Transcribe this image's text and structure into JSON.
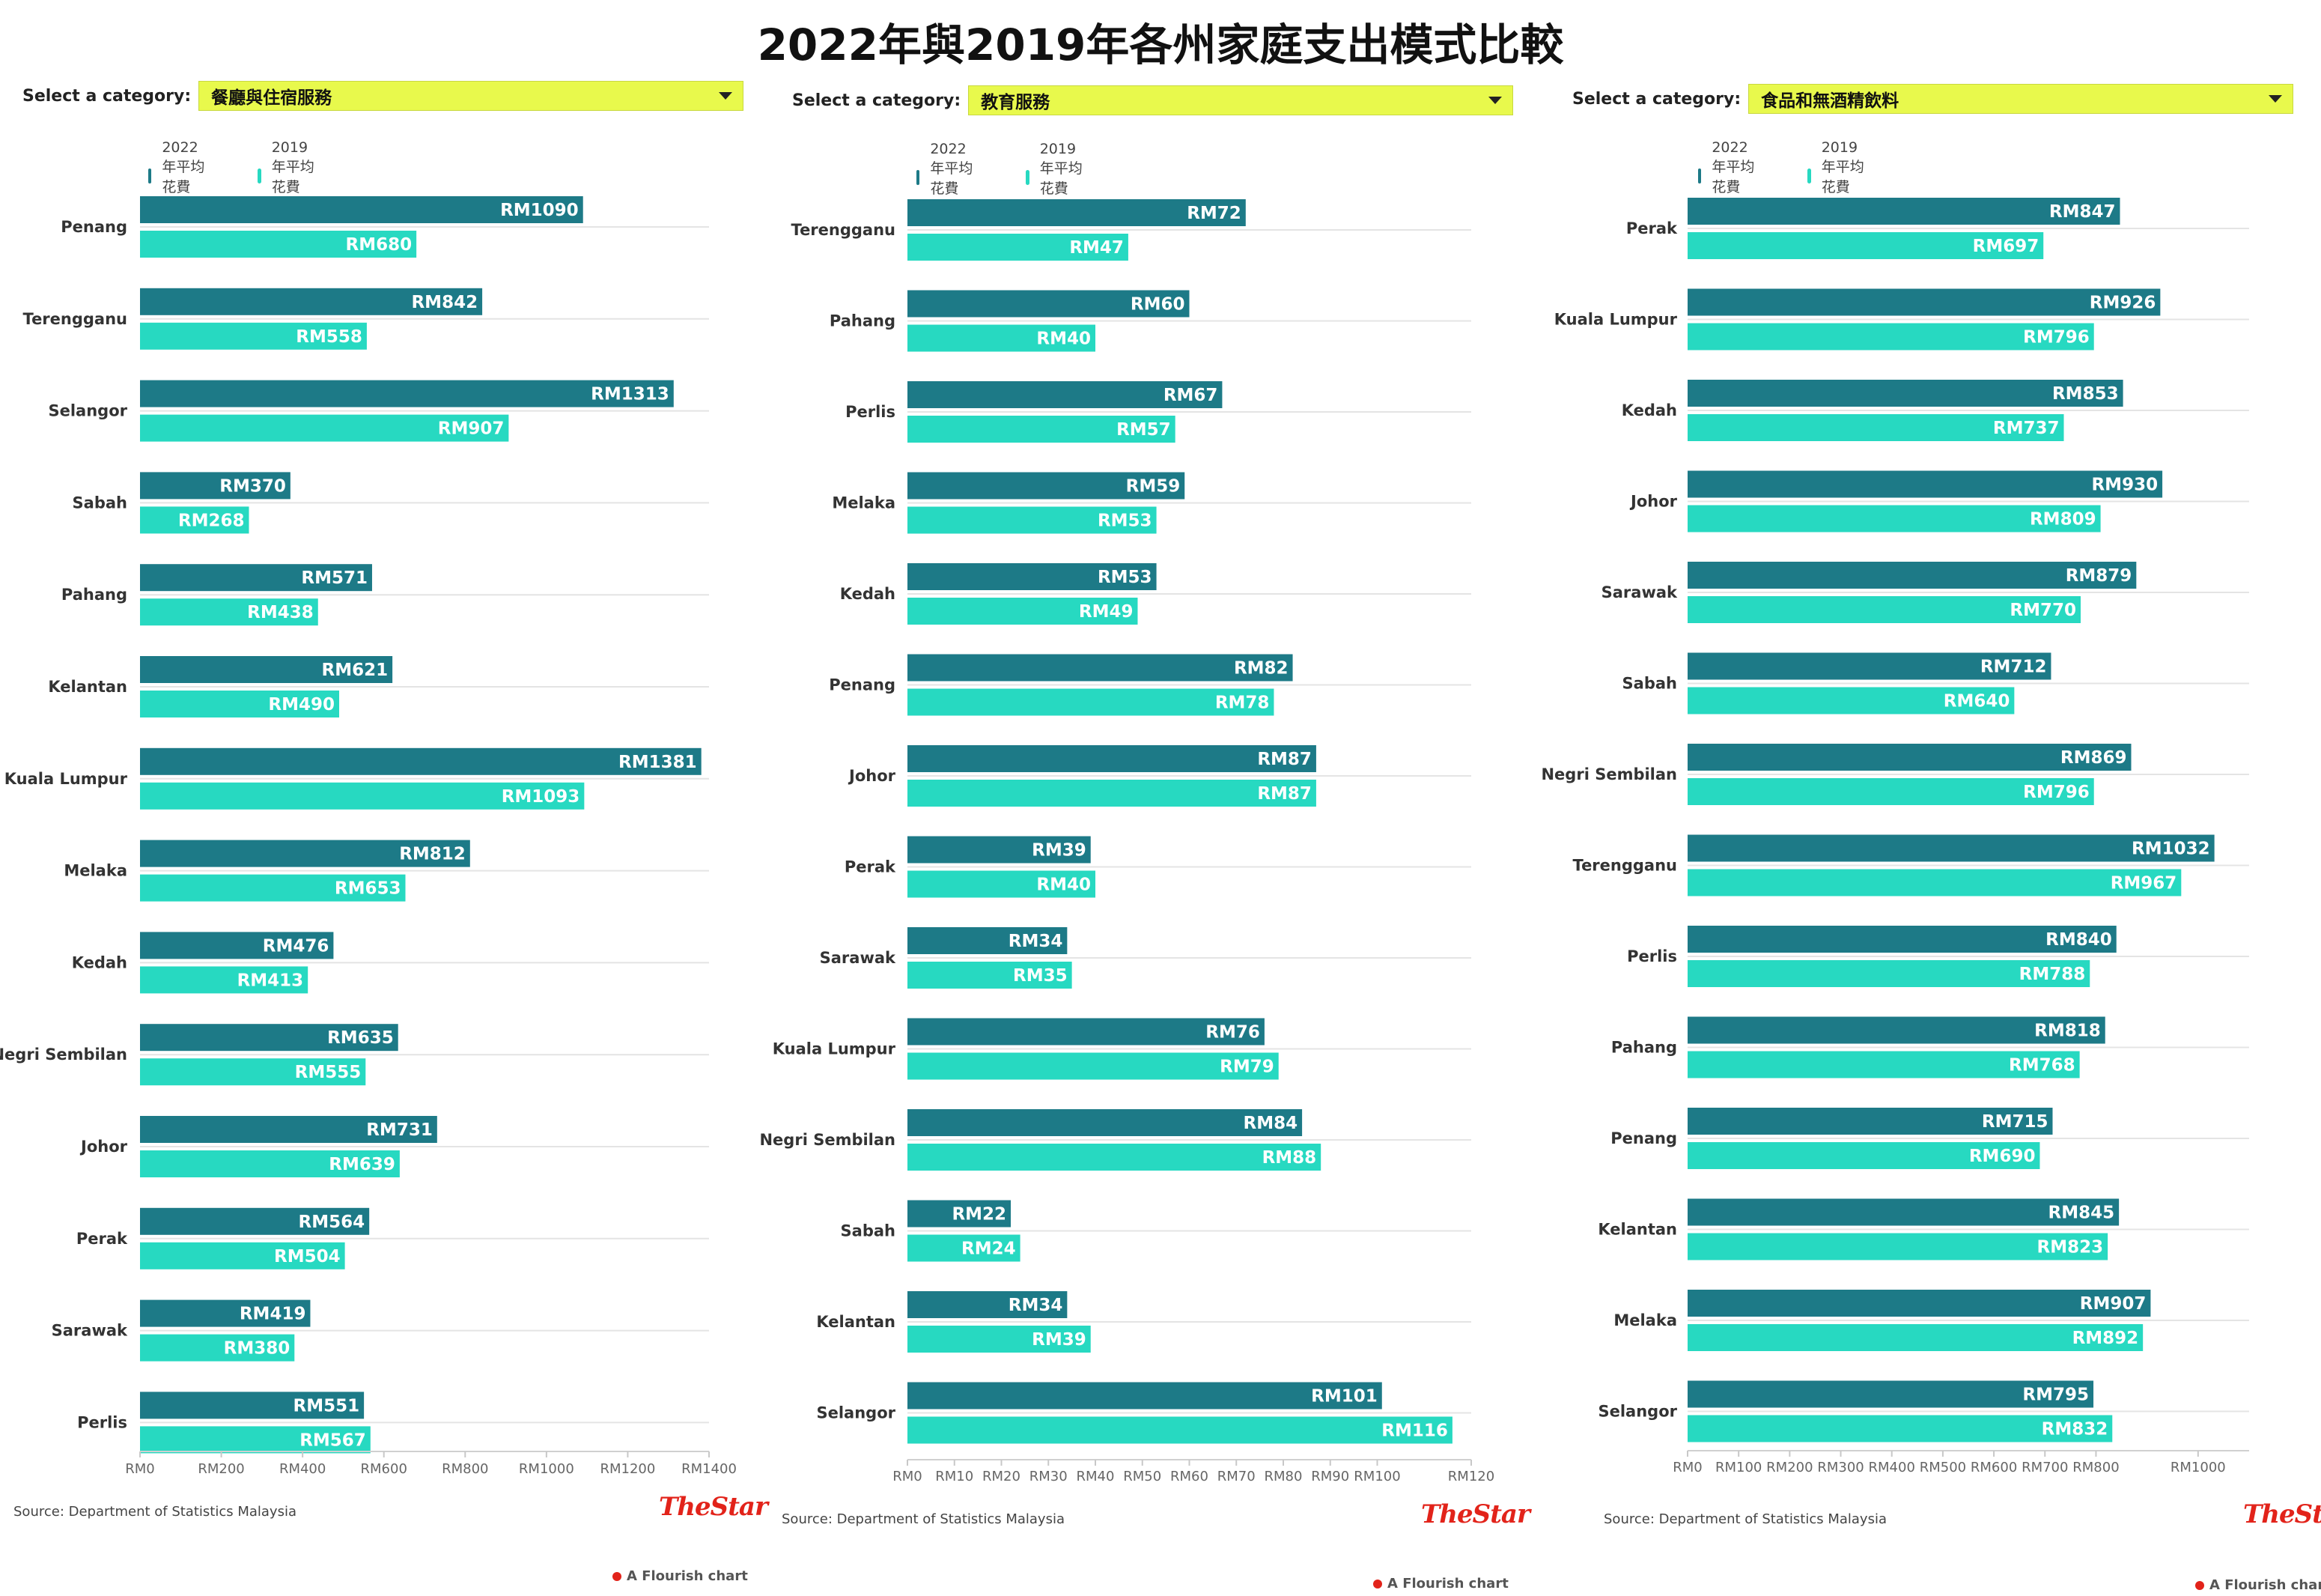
{
  "title": "2022年與2019年各州家庭支出模式比較",
  "select_label": "Select a category:",
  "legend": {
    "series_2022": "2022年平均花費(RM)",
    "series_2019": "2019年平均花費(RM)"
  },
  "colors": {
    "series_2022": "#1d7a87",
    "series_2019": "#27d9c1",
    "select_bg": "#e8f94c",
    "brand": "#e2231a"
  },
  "source": "Source: Department of Statistics Malaysia",
  "brand": "TheStar",
  "flourish": "A Flourish chart",
  "chart_data": [
    {
      "type": "bar",
      "category": "餐廳與住宿服務",
      "categories": [
        "Penang",
        "Terengganu",
        "Selangor",
        "Sabah",
        "Pahang",
        "Kelantan",
        "Kuala Lumpur",
        "Melaka",
        "Kedah",
        "Negri Sembilan",
        "Johor",
        "Perak",
        "Sarawak",
        "Perlis"
      ],
      "series": [
        {
          "name": "2022年平均花費(RM)",
          "values": [
            1090,
            842,
            1313,
            370,
            571,
            621,
            1381,
            812,
            476,
            635,
            731,
            564,
            419,
            551
          ]
        },
        {
          "name": "2019年平均花費(RM)",
          "values": [
            680,
            558,
            907,
            268,
            438,
            490,
            1093,
            653,
            413,
            555,
            639,
            504,
            380,
            567
          ]
        }
      ],
      "xlim": [
        0,
        1400
      ],
      "xticks": [
        0,
        200,
        400,
        600,
        800,
        1000,
        1200,
        1400
      ],
      "tick_prefix": "RM",
      "value_prefix": "RM"
    },
    {
      "type": "bar",
      "category": "教育服務",
      "categories": [
        "Terengganu",
        "Pahang",
        "Perlis",
        "Melaka",
        "Kedah",
        "Penang",
        "Johor",
        "Perak",
        "Sarawak",
        "Kuala Lumpur",
        "Negri Sembilan",
        "Sabah",
        "Kelantan",
        "Selangor"
      ],
      "series": [
        {
          "name": "2022年平均花費(RM)",
          "values": [
            72,
            60,
            67,
            59,
            53,
            82,
            87,
            39,
            34,
            76,
            84,
            22,
            34,
            101
          ]
        },
        {
          "name": "2019年平均花費(RM)",
          "values": [
            47,
            40,
            57,
            53,
            49,
            78,
            87,
            40,
            35,
            79,
            88,
            24,
            39,
            116
          ]
        }
      ],
      "xlim": [
        0,
        120
      ],
      "xticks": [
        0,
        10,
        20,
        30,
        40,
        50,
        60,
        70,
        80,
        90,
        100,
        120
      ],
      "tick_prefix": "RM",
      "value_prefix": "RM"
    },
    {
      "type": "bar",
      "category": "食品和無酒精飲料",
      "categories": [
        "Perak",
        "Kuala Lumpur",
        "Kedah",
        "Johor",
        "Sarawak",
        "Sabah",
        "Negri Sembilan",
        "Terengganu",
        "Perlis",
        "Pahang",
        "Penang",
        "Kelantan",
        "Melaka",
        "Selangor"
      ],
      "series": [
        {
          "name": "2022年平均花費(RM)",
          "values": [
            847,
            926,
            853,
            930,
            879,
            712,
            869,
            1032,
            840,
            818,
            715,
            845,
            907,
            795
          ]
        },
        {
          "name": "2019年平均花費(RM)",
          "values": [
            697,
            796,
            737,
            809,
            770,
            640,
            796,
            967,
            788,
            768,
            690,
            823,
            892,
            832
          ]
        }
      ],
      "xlim": [
        0,
        1100
      ],
      "xticks": [
        0,
        100,
        200,
        300,
        400,
        500,
        600,
        700,
        800,
        1000
      ],
      "tick_prefix": "RM",
      "value_prefix": "RM"
    }
  ]
}
